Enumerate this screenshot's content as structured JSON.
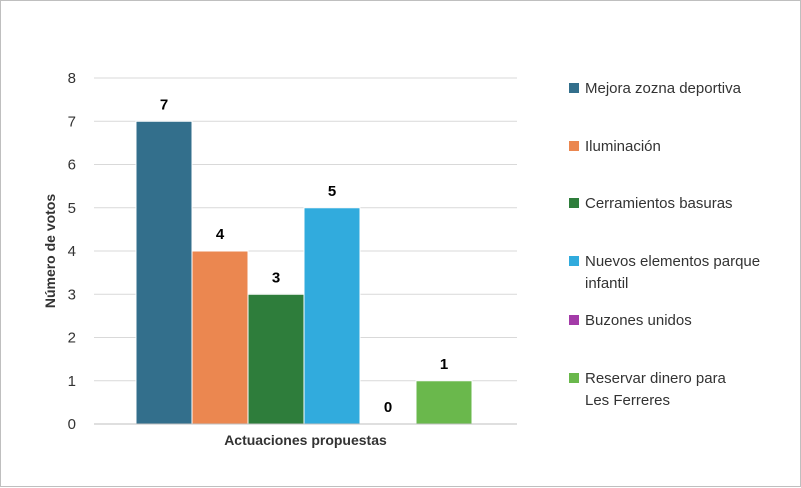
{
  "chart_data": {
    "type": "bar",
    "title": "",
    "xlabel": "Actuaciones propuestas",
    "ylabel": "Número de votos",
    "ylim": [
      0,
      8
    ],
    "yticks": [
      0,
      1,
      2,
      3,
      4,
      5,
      6,
      7,
      8
    ],
    "grid": true,
    "legend_position": "right",
    "series": [
      {
        "name": "Mejora zozna deportiva",
        "values": [
          7
        ],
        "color": "#336F8C"
      },
      {
        "name": "Iluminación",
        "values": [
          4
        ],
        "color": "#EB8750"
      },
      {
        "name": "Cerramientos basuras",
        "values": [
          3
        ],
        "color": "#2E7D3B"
      },
      {
        "name": "Nuevos elementos parque infantil",
        "values": [
          5
        ],
        "color": "#31ABDD"
      },
      {
        "name": "Buzones unidos",
        "values": [
          0
        ],
        "color": "#A33BA8"
      },
      {
        "name": "Reservar dinero para Les Ferreres",
        "values": [
          1
        ],
        "color": "#6AB84C"
      }
    ]
  }
}
